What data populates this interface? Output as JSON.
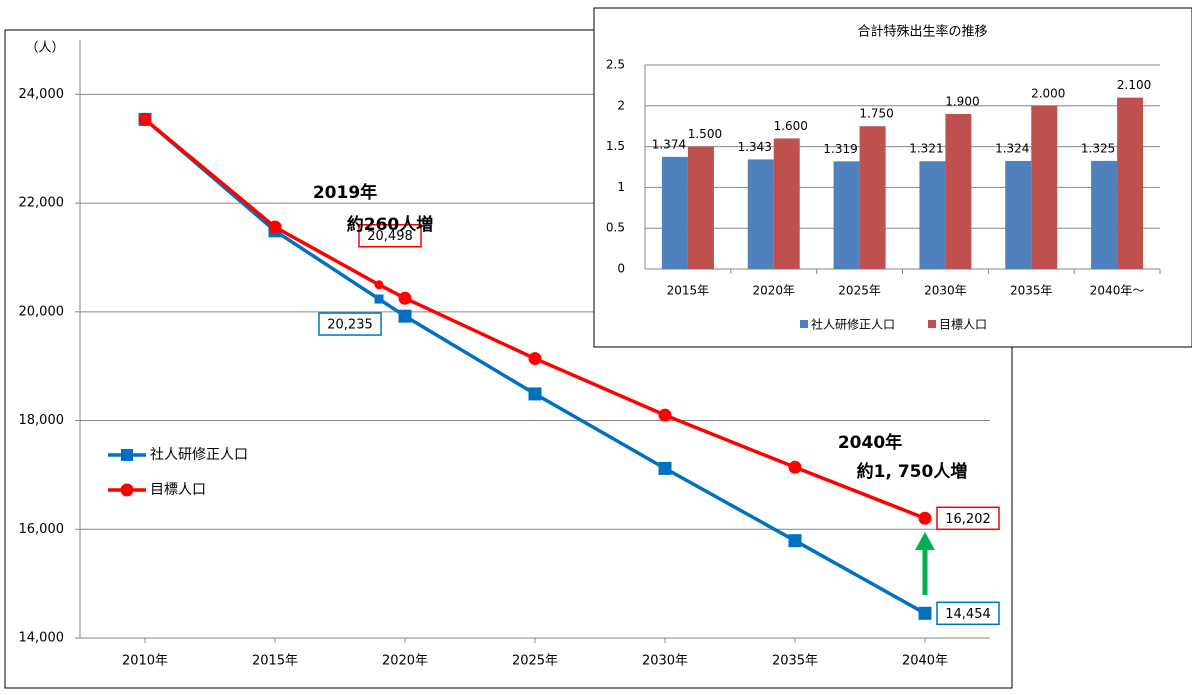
{
  "chart_data": [
    {
      "type": "line",
      "y_label": "（人）",
      "x": [
        2010,
        2015,
        2019,
        2020,
        2025,
        2030,
        2035,
        2040
      ],
      "xlim": [
        2007.5,
        2042.5
      ],
      "xticks": [
        {
          "value": 2010,
          "label": "2010年"
        },
        {
          "value": 2015,
          "label": "2015年"
        },
        {
          "value": 2020,
          "label": "2020年"
        },
        {
          "value": 2025,
          "label": "2025年"
        },
        {
          "value": 2030,
          "label": "2030年"
        },
        {
          "value": 2035,
          "label": "2035年"
        },
        {
          "value": 2040,
          "label": "2040年"
        }
      ],
      "ylim": [
        14000,
        25000
      ],
      "yticks": [
        {
          "value": 14000,
          "label": "14,000"
        },
        {
          "value": 16000,
          "label": "16,000"
        },
        {
          "value": 18000,
          "label": "18,000"
        },
        {
          "value": 20000,
          "label": "20,000"
        },
        {
          "value": 22000,
          "label": "22,000"
        },
        {
          "value": 24000,
          "label": "24,000"
        }
      ],
      "grid": true,
      "legend": "left",
      "series": [
        {
          "name": "社人研修正人口",
          "color": "#0070c0",
          "marker": "square",
          "values": [
            23540,
            21490,
            20235,
            19920,
            18490,
            17120,
            15790,
            14454
          ],
          "value_labels": [
            null,
            null,
            "20,235",
            null,
            null,
            null,
            null,
            "14,454"
          ]
        },
        {
          "name": "目標人口",
          "color": "#ff0000",
          "marker": "circle",
          "values": [
            23540,
            21560,
            20498,
            20250,
            19140,
            18100,
            17140,
            16202
          ],
          "value_labels": [
            null,
            null,
            "20,498",
            null,
            null,
            null,
            null,
            "16,202"
          ]
        }
      ],
      "annotations": [
        "2019年",
        "約260人増",
        "2040年",
        "約1, 750人増"
      ]
    },
    {
      "type": "bar",
      "title": "合計特殊出生率の推移",
      "categories": [
        "2015年",
        "2020年",
        "2025年",
        "2030年",
        "2035年",
        "2040年～"
      ],
      "ylim": [
        0,
        2.5
      ],
      "yticks": [
        0,
        0.5,
        1,
        1.5,
        2,
        2.5
      ],
      "grid": true,
      "legend": "bottom",
      "series": [
        {
          "name": "社人研修正人口",
          "color": "#4f81bd",
          "values": [
            1.374,
            1.343,
            1.319,
            1.321,
            1.324,
            1.325
          ]
        },
        {
          "name": "目標人口",
          "color": "#c0504d",
          "values": [
            1.5,
            1.6,
            1.75,
            1.9,
            2.0,
            2.1
          ],
          "value_labels": [
            "1.500",
            "1.600",
            "1.750",
            "1.900",
            "2.000",
            "2.100"
          ]
        }
      ]
    }
  ]
}
